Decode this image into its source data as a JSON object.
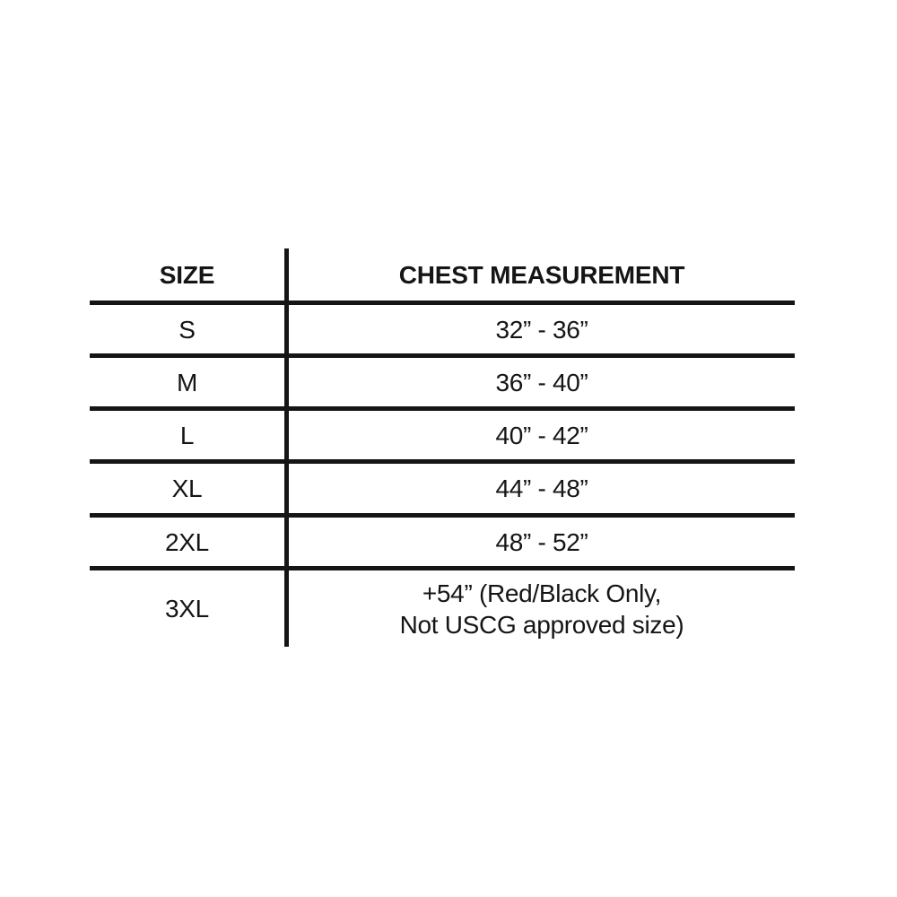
{
  "table": {
    "columns": [
      "SIZE",
      "CHEST MEASUREMENT"
    ],
    "rows": [
      {
        "size": "S",
        "measurement": "32” - 36”"
      },
      {
        "size": "M",
        "measurement": "36” - 40”"
      },
      {
        "size": "L",
        "measurement": "40” - 42”"
      },
      {
        "size": "XL",
        "measurement": "44” - 48”"
      },
      {
        "size": "2XL",
        "measurement": "48” - 52”"
      },
      {
        "size": "3XL",
        "measurement": "+54” (Red/Black Only,\nNot USCG approved size)"
      }
    ]
  },
  "colors": {
    "text": "#151515",
    "line": "#151515",
    "background": "#ffffff"
  }
}
